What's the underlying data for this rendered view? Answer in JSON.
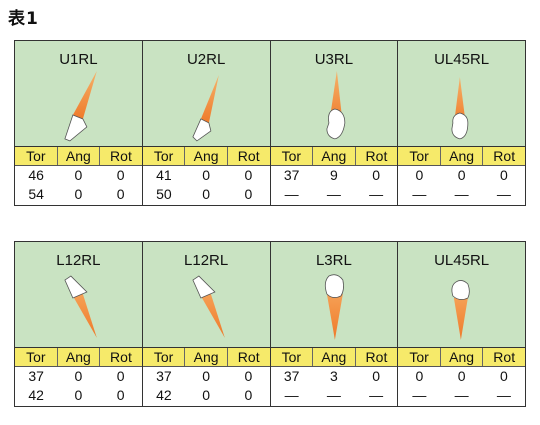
{
  "title": "表1",
  "headers": [
    "Tor",
    "Ang",
    "Rot"
  ],
  "groups": [
    {
      "cells": [
        {
          "label": "U1RL",
          "rows": [
            [
              "46",
              "0",
              "0"
            ],
            [
              "54",
              "0",
              "0"
            ]
          ]
        },
        {
          "label": "U2RL",
          "rows": [
            [
              "41",
              "0",
              "0"
            ],
            [
              "50",
              "0",
              "0"
            ]
          ]
        },
        {
          "label": "U3RL",
          "rows": [
            [
              "37",
              "9",
              "0"
            ],
            [
              "—",
              "—",
              "—"
            ]
          ]
        },
        {
          "label": "UL45RL",
          "rows": [
            [
              "0",
              "0",
              "0"
            ],
            [
              "—",
              "—",
              "—"
            ]
          ]
        }
      ]
    },
    {
      "cells": [
        {
          "label": "L12RL",
          "rows": [
            [
              "37",
              "0",
              "0"
            ],
            [
              "42",
              "0",
              "0"
            ]
          ]
        },
        {
          "label": "L12RL",
          "rows": [
            [
              "37",
              "0",
              "0"
            ],
            [
              "42",
              "0",
              "0"
            ]
          ]
        },
        {
          "label": "L3RL",
          "rows": [
            [
              "37",
              "3",
              "0"
            ],
            [
              "—",
              "—",
              "—"
            ]
          ]
        },
        {
          "label": "UL45RL",
          "rows": [
            [
              "0",
              "0",
              "0"
            ],
            [
              "—",
              "—",
              "—"
            ]
          ]
        }
      ]
    }
  ],
  "colors": {
    "image_bg": "#c9e3c2",
    "header_bg": "#f6ea6a",
    "root": "#f08a3c",
    "crown": "#ffffff"
  }
}
